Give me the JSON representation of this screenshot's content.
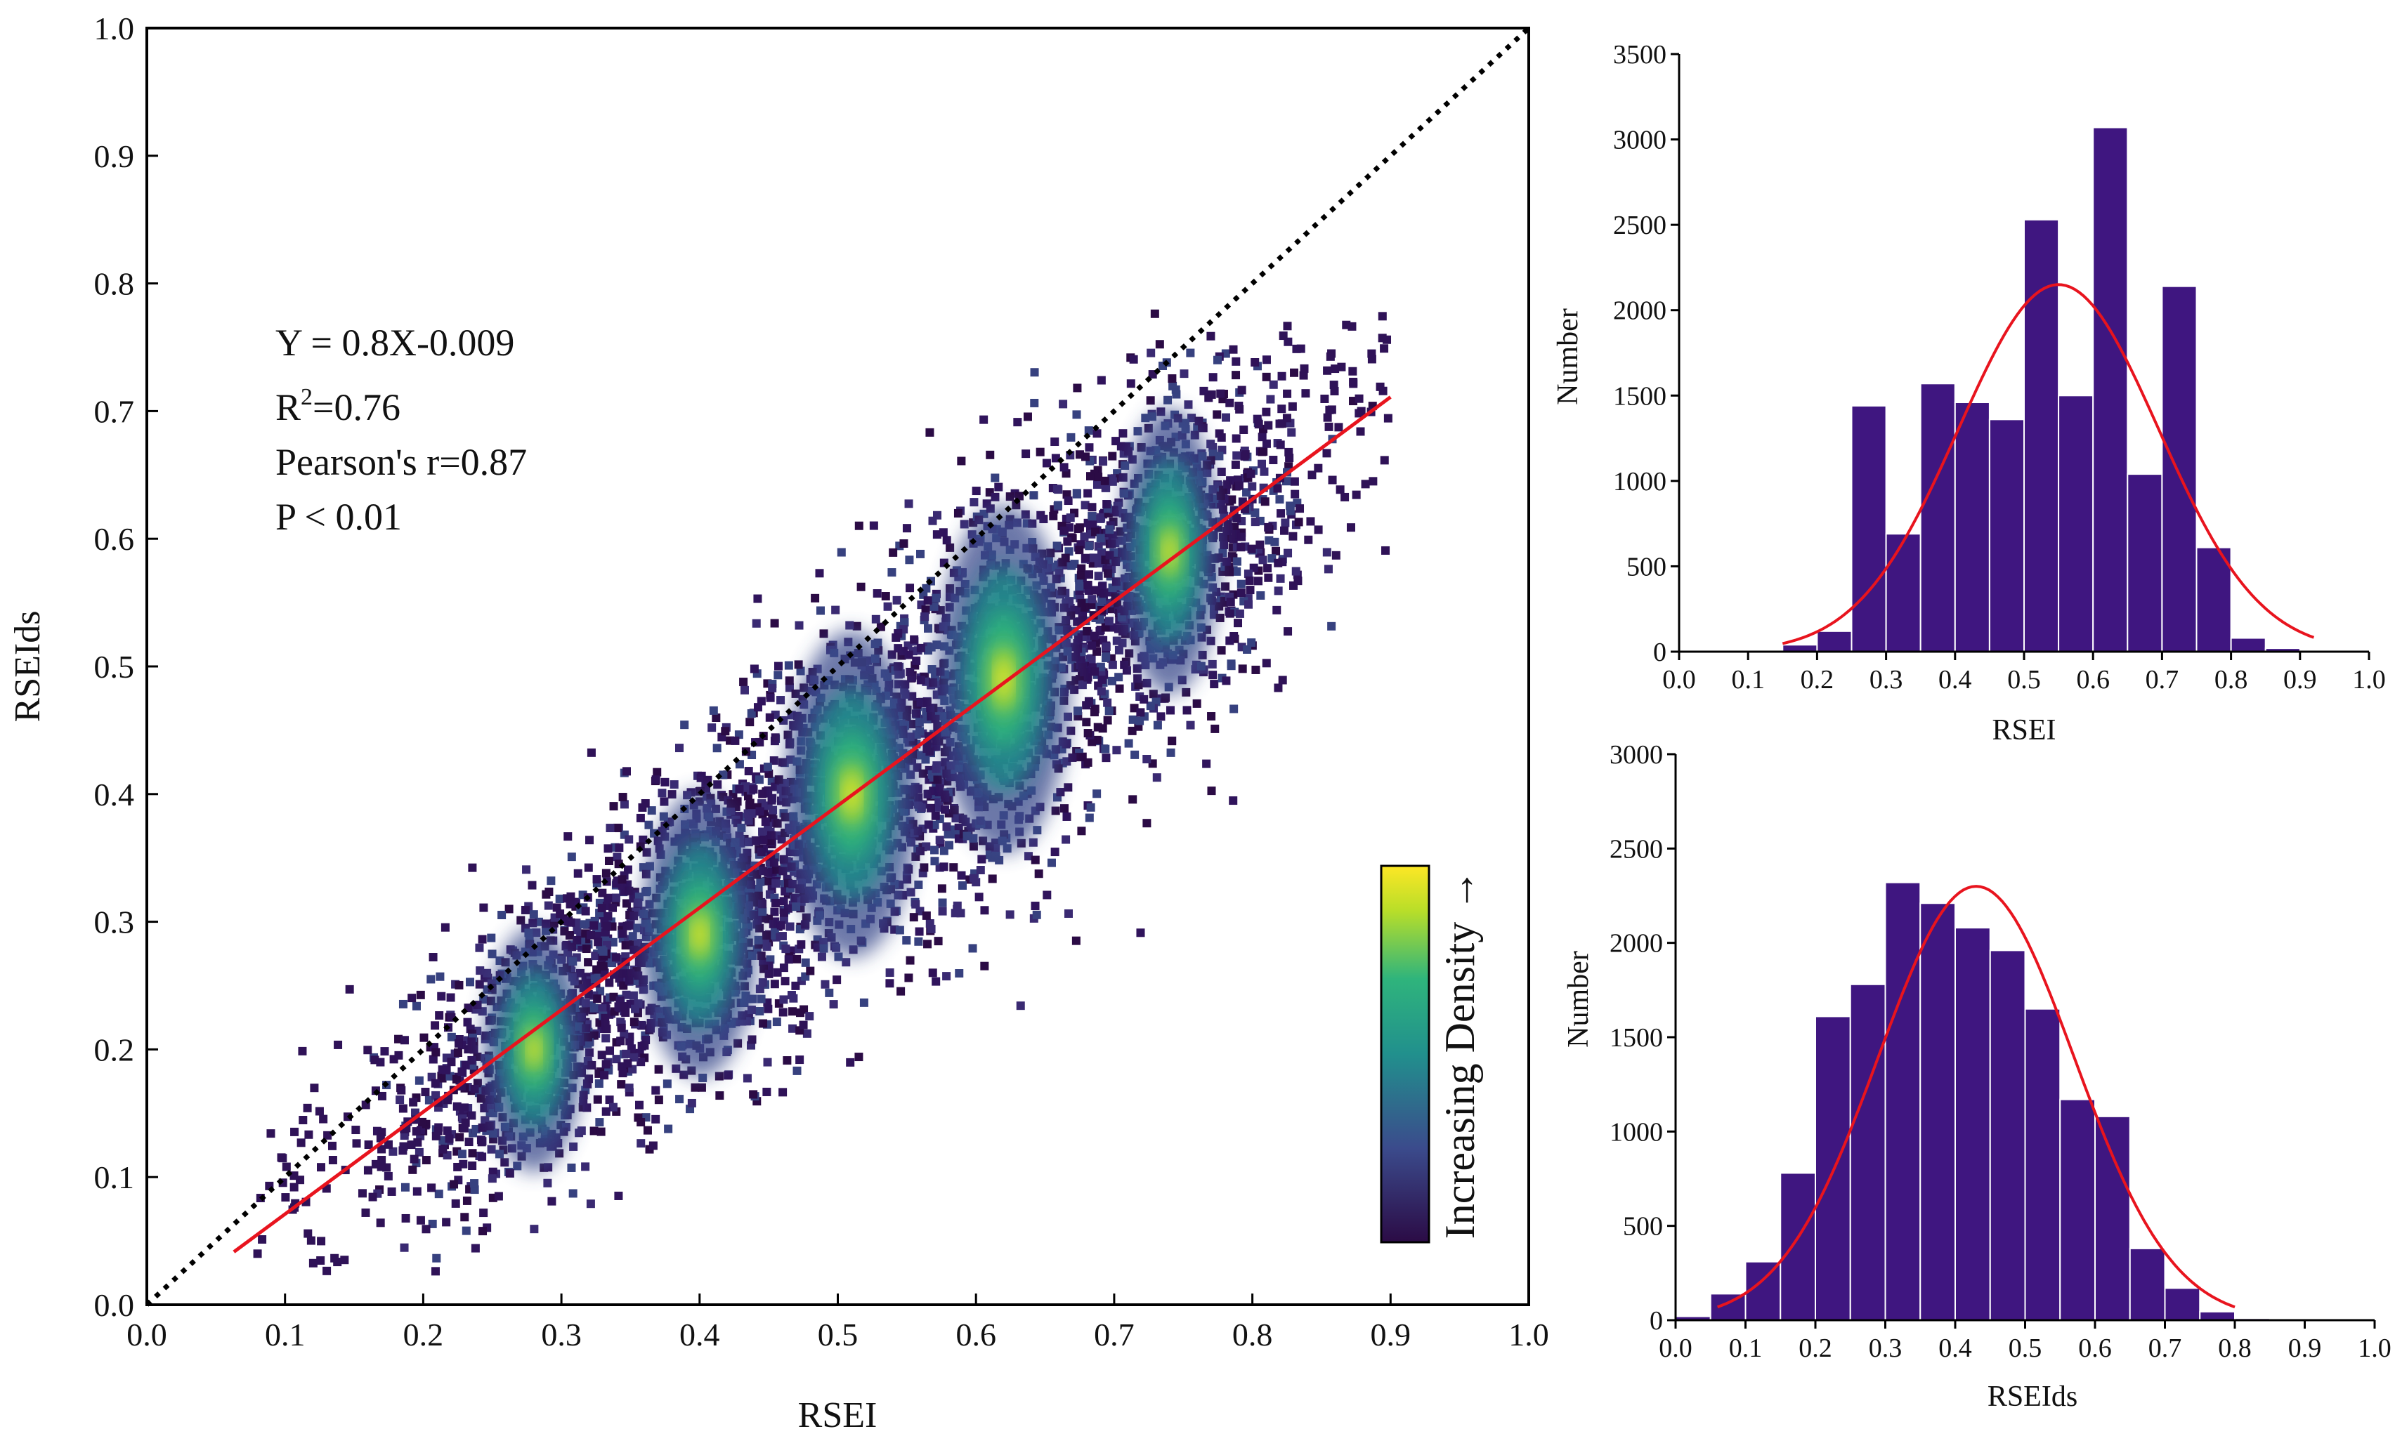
{
  "chart_data": [
    {
      "type": "scatter",
      "subtype": "density-scatter",
      "title": "",
      "xlabel": "RSEI",
      "ylabel": "RSEIds",
      "xlim": [
        0.0,
        1.0
      ],
      "ylim": [
        0.0,
        1.0
      ],
      "xticks": [
        "0.0",
        "0.1",
        "0.2",
        "0.3",
        "0.4",
        "0.5",
        "0.6",
        "0.7",
        "0.8",
        "0.9",
        "1.0"
      ],
      "yticks": [
        "0.0",
        "0.1",
        "0.2",
        "0.3",
        "0.4",
        "0.5",
        "0.6",
        "0.7",
        "0.8",
        "0.9",
        "1.0"
      ],
      "clusters": [
        {
          "x": 0.28,
          "y": 0.2,
          "sx": 0.03,
          "sy": 0.06,
          "n": 700
        },
        {
          "x": 0.4,
          "y": 0.29,
          "sx": 0.035,
          "sy": 0.07,
          "n": 800
        },
        {
          "x": 0.51,
          "y": 0.4,
          "sx": 0.04,
          "sy": 0.08,
          "n": 900
        },
        {
          "x": 0.62,
          "y": 0.49,
          "sx": 0.04,
          "sy": 0.085,
          "n": 900
        },
        {
          "x": 0.74,
          "y": 0.59,
          "sx": 0.03,
          "sy": 0.07,
          "n": 800
        }
      ],
      "fit_line": {
        "slope": 0.8,
        "intercept": -0.009,
        "x_range": [
          0.063,
          0.9
        ],
        "color": "#e8141e"
      },
      "reference_line": {
        "slope": 1,
        "intercept": 0,
        "style": "dotted",
        "color": "#000000"
      },
      "annotations": [
        "Y = 0.8X-0.009",
        "R",
        "2",
        "=0.76",
        "Pearson's r=0.87",
        "P < 0.01"
      ],
      "colorbar": {
        "label": "Increasing Density →",
        "colors": [
          "#2b0b45",
          "#3b4b8c",
          "#21908d",
          "#2fb47c",
          "#b8de29",
          "#fde725"
        ]
      }
    },
    {
      "type": "bar",
      "subtype": "histogram",
      "xlabel": "RSEI",
      "ylabel": "Number",
      "xlim": [
        0.0,
        1.0
      ],
      "ylim": [
        0,
        3500
      ],
      "xticks": [
        "0.0",
        "0.1",
        "0.2",
        "0.3",
        "0.4",
        "0.5",
        "0.6",
        "0.7",
        "0.8",
        "0.9",
        "1.0"
      ],
      "yticks": [
        "0",
        "500",
        "1000",
        "1500",
        "2000",
        "2500",
        "3000",
        "3500"
      ],
      "bin_width": 0.05,
      "bins": [
        {
          "x": 0.125,
          "value": 5
        },
        {
          "x": 0.175,
          "value": 40
        },
        {
          "x": 0.225,
          "value": 120
        },
        {
          "x": 0.275,
          "value": 1440
        },
        {
          "x": 0.325,
          "value": 690
        },
        {
          "x": 0.375,
          "value": 1570
        },
        {
          "x": 0.425,
          "value": 1460
        },
        {
          "x": 0.475,
          "value": 1360
        },
        {
          "x": 0.525,
          "value": 2530
        },
        {
          "x": 0.575,
          "value": 1500
        },
        {
          "x": 0.625,
          "value": 3070
        },
        {
          "x": 0.675,
          "value": 1040
        },
        {
          "x": 0.725,
          "value": 2140
        },
        {
          "x": 0.775,
          "value": 610
        },
        {
          "x": 0.825,
          "value": 80
        },
        {
          "x": 0.875,
          "value": 20
        }
      ],
      "normal_fit": {
        "mean": 0.55,
        "sd": 0.145,
        "peak": 2150,
        "x_range": [
          0.15,
          0.92
        ],
        "color": "#e8141e"
      },
      "bar_color": "#3f1680"
    },
    {
      "type": "bar",
      "subtype": "histogram",
      "xlabel": "RSEIds",
      "ylabel": "Number",
      "xlim": [
        0.0,
        1.0
      ],
      "ylim": [
        0,
        3000
      ],
      "xticks": [
        "0.0",
        "0.1",
        "0.2",
        "0.3",
        "0.4",
        "0.5",
        "0.6",
        "0.7",
        "0.8",
        "0.9",
        "1.0"
      ],
      "yticks": [
        "0",
        "500",
        "1000",
        "1500",
        "2000",
        "2500",
        "3000"
      ],
      "bin_width": 0.05,
      "bins": [
        {
          "x": 0.025,
          "value": 20
        },
        {
          "x": 0.075,
          "value": 140
        },
        {
          "x": 0.125,
          "value": 310
        },
        {
          "x": 0.175,
          "value": 780
        },
        {
          "x": 0.225,
          "value": 1610
        },
        {
          "x": 0.275,
          "value": 1780
        },
        {
          "x": 0.325,
          "value": 2320
        },
        {
          "x": 0.375,
          "value": 2210
        },
        {
          "x": 0.425,
          "value": 2080
        },
        {
          "x": 0.475,
          "value": 1960
        },
        {
          "x": 0.525,
          "value": 1650
        },
        {
          "x": 0.575,
          "value": 1170
        },
        {
          "x": 0.625,
          "value": 1080
        },
        {
          "x": 0.675,
          "value": 380
        },
        {
          "x": 0.725,
          "value": 170
        },
        {
          "x": 0.775,
          "value": 45
        },
        {
          "x": 0.825,
          "value": 10
        }
      ],
      "normal_fit": {
        "mean": 0.43,
        "sd": 0.14,
        "peak": 2300,
        "x_range": [
          0.06,
          0.8
        ],
        "color": "#e8141e"
      },
      "bar_color": "#3f1680"
    }
  ]
}
